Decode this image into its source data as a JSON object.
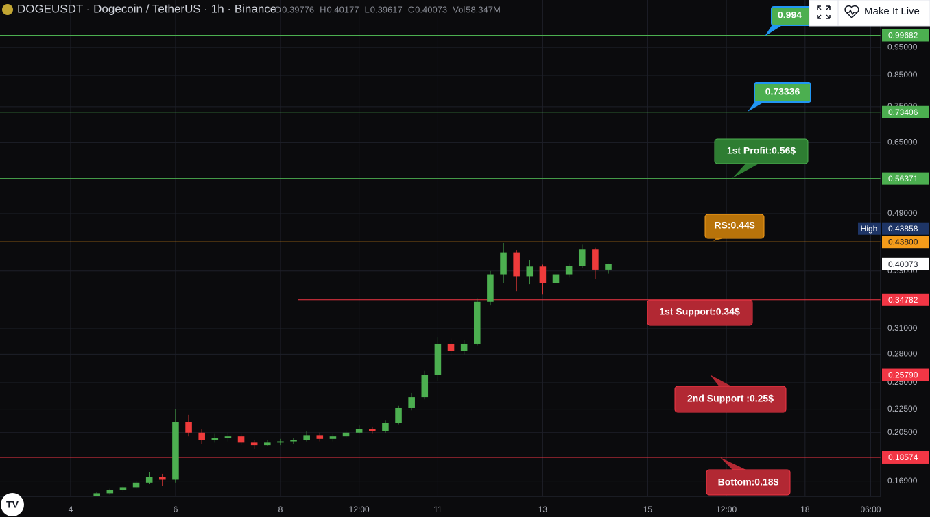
{
  "header": {
    "title": "DOGEUSDT · Dogecoin / TetherUS · 1h · Binance",
    "ohlc": [
      {
        "key": "O",
        "value": 0.39776
      },
      {
        "key": "H",
        "value": 0.40177
      },
      {
        "key": "L",
        "value": 0.39617
      },
      {
        "key": "C",
        "value": 0.40073
      },
      {
        "key": "Vol",
        "value": "58.347M"
      }
    ]
  },
  "button": {
    "label": "Make It Live"
  },
  "chart_data": {
    "type": "candlestick",
    "log_scale": true,
    "grid": true,
    "up_color": "#4caf50",
    "down_color": "#ef3b3b",
    "x": [
      4.5,
      4.75,
      5,
      5.25,
      5.5,
      5.75,
      6,
      6.25,
      6.5,
      6.75,
      7,
      7.25,
      7.5,
      7.75,
      8,
      8.25,
      8.5,
      8.75,
      9,
      9.25,
      9.5,
      9.75,
      10,
      10.25,
      10.5,
      10.75,
      11,
      11.25,
      11.5,
      11.75,
      12,
      12.25,
      12.5,
      12.75,
      13,
      13.25,
      13.5,
      13.75,
      14,
      14.25
    ],
    "open": [
      0.159,
      0.161,
      0.163,
      0.165,
      0.168,
      0.172,
      0.17,
      0.214,
      0.205,
      0.199,
      0.201,
      0.202,
      0.197,
      0.195,
      0.197,
      0.198,
      0.199,
      0.203,
      0.2,
      0.202,
      0.205,
      0.208,
      0.206,
      0.213,
      0.226,
      0.236,
      0.258,
      0.292,
      0.284,
      0.292,
      0.345,
      0.385,
      0.42,
      0.382,
      0.397,
      0.372,
      0.385,
      0.398,
      0.425,
      0.392
    ],
    "high": [
      0.162,
      0.164,
      0.166,
      0.169,
      0.175,
      0.174,
      0.225,
      0.22,
      0.208,
      0.204,
      0.205,
      0.204,
      0.199,
      0.199,
      0.2,
      0.201,
      0.206,
      0.205,
      0.204,
      0.207,
      0.211,
      0.21,
      0.215,
      0.228,
      0.24,
      0.262,
      0.3,
      0.298,
      0.296,
      0.35,
      0.39,
      0.436,
      0.424,
      0.408,
      0.4,
      0.392,
      0.402,
      0.433,
      0.428,
      0.40177
    ],
    "low": [
      0.1595,
      0.16,
      0.162,
      0.164,
      0.167,
      0.166,
      0.168,
      0.202,
      0.196,
      0.197,
      0.198,
      0.195,
      0.192,
      0.194,
      0.195,
      0.196,
      0.198,
      0.198,
      0.198,
      0.201,
      0.204,
      0.204,
      0.205,
      0.212,
      0.224,
      0.234,
      0.252,
      0.278,
      0.28,
      0.29,
      0.34,
      0.372,
      0.36,
      0.37,
      0.355,
      0.362,
      0.38,
      0.395,
      0.378,
      0.386
    ],
    "close": [
      0.161,
      0.163,
      0.165,
      0.168,
      0.172,
      0.17,
      0.214,
      0.205,
      0.199,
      0.201,
      0.202,
      0.197,
      0.195,
      0.197,
      0.198,
      0.199,
      0.203,
      0.2,
      0.202,
      0.205,
      0.208,
      0.206,
      0.213,
      0.226,
      0.236,
      0.258,
      0.292,
      0.284,
      0.292,
      0.345,
      0.385,
      0.42,
      0.382,
      0.397,
      0.372,
      0.385,
      0.398,
      0.425,
      0.392,
      0.40073
    ],
    "xlim": [
      2.654,
      19.44
    ],
    "xticks": [
      4,
      6,
      8,
      {
        "value": 9.5,
        "label": "12:00"
      },
      11,
      13,
      15,
      {
        "value": 16.5,
        "label": "12:00"
      },
      18,
      {
        "value": 19.25,
        "label": "06:00"
      }
    ],
    "ylim": [
      0.159,
      1.147
    ],
    "yticks": [
      {
        "value": 0.95,
        "label": "0.95000"
      },
      {
        "value": 0.85,
        "label": "0.85000"
      },
      {
        "value": 0.75,
        "label": "0.75000"
      },
      {
        "value": 0.65,
        "label": "0.65000"
      },
      {
        "value": 0.49,
        "label": "0.49000"
      },
      {
        "value": 0.39,
        "label": "0.39000"
      },
      {
        "value": 0.31,
        "label": "0.31000"
      },
      {
        "value": 0.28,
        "label": "0.28000"
      },
      {
        "value": 0.25,
        "label": "0.25000"
      },
      {
        "value": 0.225,
        "label": "0.22500"
      },
      {
        "value": 0.205,
        "label": "0.20500"
      },
      {
        "value": 0.169,
        "label": "0.16900"
      }
    ],
    "levels": [
      {
        "price": 0.99682,
        "color": "#4caf50"
      },
      {
        "price": 0.73406,
        "color": "#4caf50"
      },
      {
        "price": 0.56371,
        "color": "#4caf50"
      },
      {
        "price": 0.438,
        "price_label": "0.43800",
        "color": "#f59c1a"
      },
      {
        "price": 0.34782,
        "color": "#f23645",
        "start": 8.33
      },
      {
        "price": 0.2579,
        "price_label": "0.25790",
        "color": "#f23645",
        "start": 3.61
      },
      {
        "price": 0.18574,
        "color": "#f23645"
      }
    ],
    "last_price": 0.40073,
    "session_high": {
      "label": "High",
      "value": 0.43858
    },
    "callouts": [
      "0.994",
      "0.73336",
      "1st Profit:0.56$",
      "RS:0.44$",
      "1st Support:0.34$",
      "2nd Support :0.25$",
      "Bottom:0.18$"
    ]
  }
}
